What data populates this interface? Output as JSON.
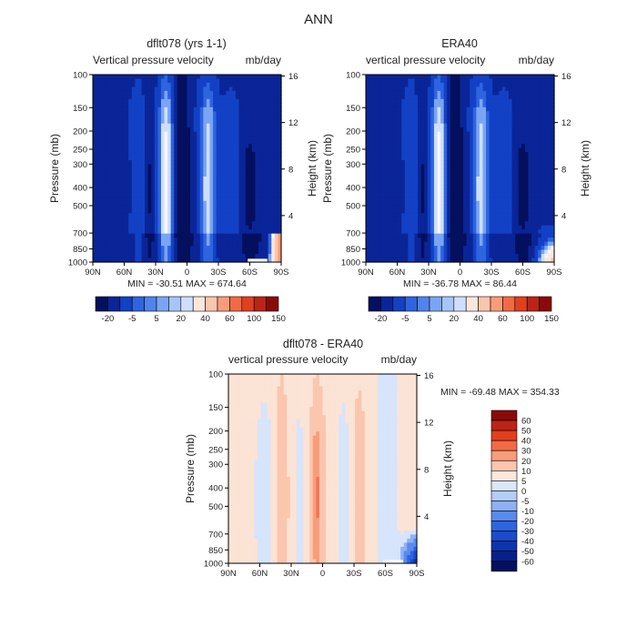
{
  "page_title": "ANN",
  "colors": {
    "neg_scale": [
      "#04105e",
      "#0a2597",
      "#1241c5",
      "#2f64e0",
      "#4f84ee",
      "#7aa5f3",
      "#a6c6f8",
      "#cfdffb"
    ],
    "pos_scale": [
      "#fde7dc",
      "#fbc6ae",
      "#f99c7a",
      "#f26a45",
      "#e0401e",
      "#bb2417",
      "#8a0a08"
    ],
    "frame": "#000000"
  },
  "chart_data": [
    {
      "type": "heatmap",
      "title": "dflt078 (yrs 1-1)",
      "subtitle": "Vertical pressure velocity",
      "units": "mb/day",
      "xlabel": "",
      "ylabel": "Pressure (mb)",
      "y2label": "Height (km)",
      "x_ticks": [
        "90N",
        "60N",
        "30N",
        "0",
        "30S",
        "60S",
        "90S"
      ],
      "y_ticks": [
        "100",
        "150",
        "200",
        "250",
        "300",
        "400",
        "500",
        "700",
        "850",
        "1000"
      ],
      "y2_ticks": [
        "16",
        "12",
        "8",
        "4"
      ],
      "y_scale": "log",
      "stats": "MIN = -30.51   MAX = 674.64",
      "colorbar_labels": [
        "-20",
        "-5",
        "5",
        "20",
        "40",
        "60",
        "100",
        "150"
      ],
      "colorbar_orientation": "horizontal",
      "ascent_columns_lat": [
        30,
        5,
        -30
      ],
      "descent_columns_lat": [
        45,
        20,
        -10,
        -45
      ]
    },
    {
      "type": "heatmap",
      "title": "ERA40",
      "subtitle": "vertical pressure velocity",
      "units": "mb/day",
      "xlabel": "",
      "ylabel": "Pressure (mb)",
      "y2label": "Height (km)",
      "x_ticks": [
        "90N",
        "60N",
        "30N",
        "0",
        "30S",
        "60S",
        "90S"
      ],
      "y_ticks": [
        "100",
        "150",
        "200",
        "250",
        "300",
        "400",
        "500",
        "700",
        "850",
        "1000"
      ],
      "y2_ticks": [
        "16",
        "12",
        "8",
        "4"
      ],
      "y_scale": "log",
      "stats": "MIN = -36.78   MAX = 86.44",
      "colorbar_labels": [
        "-20",
        "-5",
        "5",
        "20",
        "40",
        "60",
        "100",
        "150"
      ],
      "colorbar_orientation": "horizontal"
    },
    {
      "type": "heatmap",
      "title": "dflt078 - ERA40",
      "subtitle": "vertical pressure velocity",
      "units": "mb/day",
      "xlabel": "",
      "ylabel": "Pressure (mb)",
      "y2label": "Height (km)",
      "x_ticks": [
        "90N",
        "60N",
        "30N",
        "0",
        "30S",
        "60S",
        "90S"
      ],
      "y_ticks": [
        "100",
        "150",
        "200",
        "250",
        "300",
        "400",
        "500",
        "700",
        "850",
        "1000"
      ],
      "y2_ticks": [
        "16",
        "12",
        "8",
        "4"
      ],
      "y_scale": "log",
      "stats": "MIN = -69.48   MAX = 354.33",
      "colorbar_labels": [
        "60",
        "50",
        "40",
        "30",
        "20",
        "10",
        "5",
        "0",
        "-5",
        "-10",
        "-20",
        "-30",
        "-40",
        "-50",
        "-60"
      ],
      "colorbar_orientation": "vertical"
    }
  ]
}
